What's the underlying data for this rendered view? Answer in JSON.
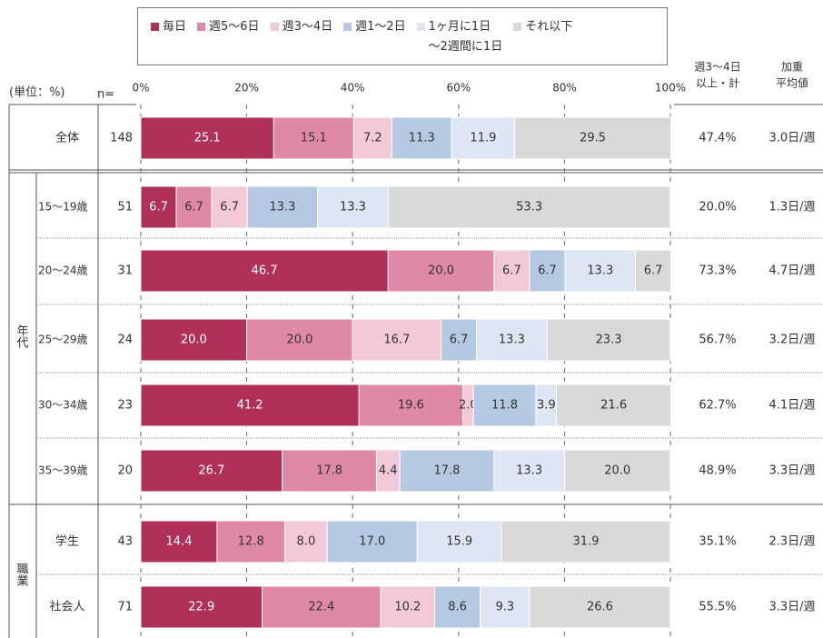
{
  "chart_data": {
    "type": "bar",
    "orientation": "horizontal",
    "stacked": true,
    "unit_label": "(単位：%)",
    "n_label": "n=",
    "sum_header": [
      "週3〜4日",
      "以上・計"
    ],
    "avg_header": [
      "加重",
      "平均値"
    ],
    "groups": [
      "年代",
      "職業"
    ],
    "categories": [
      "全体",
      "15〜19歳",
      "20〜24歳",
      "25〜29歳",
      "30〜34歳",
      "35〜39歳",
      "学生",
      "社会人"
    ],
    "n": [
      148,
      51,
      31,
      24,
      23,
      20,
      43,
      71
    ],
    "xlim": [
      0,
      100
    ],
    "xticks": [
      {
        "value": 0,
        "label": "0%"
      },
      {
        "value": 20,
        "label": "20%"
      },
      {
        "value": 40,
        "label": "40%"
      },
      {
        "value": 60,
        "label": "60%"
      },
      {
        "value": 80,
        "label": "80%"
      },
      {
        "value": 100,
        "label": "100%"
      }
    ],
    "grid": true,
    "series": [
      {
        "name": "毎日",
        "color": "#b0305a",
        "label_color": "#ffffff",
        "values": [
          25.1,
          6.7,
          46.7,
          20,
          41.2,
          26.7,
          14.4,
          22.9
        ],
        "value_labels": [
          "25.1",
          "6.7",
          "46.7",
          "20.0",
          "41.2",
          "26.7",
          "14.4",
          "22.9"
        ]
      },
      {
        "name": "週5〜6日",
        "color": "#e089a6",
        "label_color": "#333333",
        "values": [
          15.1,
          6.7,
          20,
          20,
          19.6,
          17.8,
          12.8,
          22.4
        ],
        "value_labels": [
          "15.1",
          "6.7",
          "20.0",
          "20.0",
          "19.6",
          "17.8",
          "12.8",
          "22.4"
        ]
      },
      {
        "name": "週3〜4日",
        "color": "#f4c9d7",
        "label_color": "#333333",
        "values": [
          7.2,
          6.7,
          6.7,
          16.7,
          2,
          4.4,
          8,
          10.2
        ],
        "value_labels": [
          "7.2",
          "6.7",
          "6.7",
          "16.7",
          "2.0",
          "4.4",
          "8.0",
          "10.2"
        ]
      },
      {
        "name": "週1〜2日",
        "color": "#b6c9e3",
        "label_color": "#333333",
        "values": [
          11.3,
          13.3,
          6.7,
          6.7,
          11.8,
          17.8,
          17,
          8.6
        ],
        "value_labels": [
          "11.3",
          "13.3",
          "6.7",
          "6.7",
          "11.8",
          "17.8",
          "17.0",
          "8.6"
        ]
      },
      {
        "name": "1ヶ月に1日\n〜2週間に1日",
        "color": "#dde6f2",
        "label_color": "#333333",
        "values": [
          11.9,
          13.3,
          13.3,
          13.3,
          3.9,
          13.3,
          15.9,
          9.3
        ],
        "value_labels": [
          "11.9",
          "13.3",
          "13.3",
          "13.3",
          "3.9",
          "13.3",
          "15.9",
          "9.3"
        ]
      },
      {
        "name": "それ以下",
        "color": "#d9d9d9",
        "label_color": "#333333",
        "values": [
          29.5,
          53.3,
          6.7,
          23.3,
          21.6,
          20,
          31.9,
          26.6
        ],
        "value_labels": [
          "29.5",
          "53.3",
          "6.7",
          "23.3",
          "21.6",
          "20.0",
          "31.9",
          "26.6"
        ]
      }
    ],
    "totals": {
      "values": [
        47.4,
        20,
        73.3,
        56.7,
        62.7,
        48.9,
        35.1,
        55.5
      ],
      "value_labels": [
        "47.4%",
        "20.0%",
        "73.3%",
        "56.7%",
        "62.7%",
        "48.9%",
        "35.1%",
        "55.5%"
      ]
    },
    "averages": {
      "values": [
        3,
        1.3,
        4.7,
        3.2,
        4.1,
        3.3,
        2.3,
        3.3
      ],
      "value_labels": [
        "3.0日/週",
        "1.3日/週",
        "4.7日/週",
        "3.2日/週",
        "4.1日/週",
        "3.3日/週",
        "2.3日/週",
        "3.3日/週"
      ]
    }
  }
}
